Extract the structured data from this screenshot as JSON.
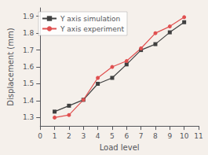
{
  "chart_data": {
    "type": "line",
    "x": [
      1,
      2,
      3,
      4,
      5,
      6,
      7,
      8,
      9,
      10
    ],
    "series": [
      {
        "name": "Y axis simulation",
        "color": "#404040",
        "marker": "square",
        "values": [
          1.335,
          1.37,
          1.405,
          1.5,
          1.535,
          1.615,
          1.7,
          1.735,
          1.805,
          1.865
        ]
      },
      {
        "name": "Y axis experiment",
        "color": "#e05050",
        "marker": "circle",
        "values": [
          1.3,
          1.315,
          1.405,
          1.535,
          1.6,
          1.635,
          1.71,
          1.8,
          1.84,
          1.895
        ]
      }
    ],
    "xlabel": "Load level",
    "ylabel": "Displacement (mm)",
    "xlim": [
      0,
      11
    ],
    "ylim": [
      1.25,
      1.95
    ],
    "xticks": [
      0,
      1,
      2,
      3,
      4,
      5,
      6,
      7,
      8,
      9,
      10,
      11
    ],
    "yticks": [
      1.3,
      1.4,
      1.5,
      1.6,
      1.7,
      1.8,
      1.9
    ],
    "grid": false,
    "legend": "upper left"
  }
}
